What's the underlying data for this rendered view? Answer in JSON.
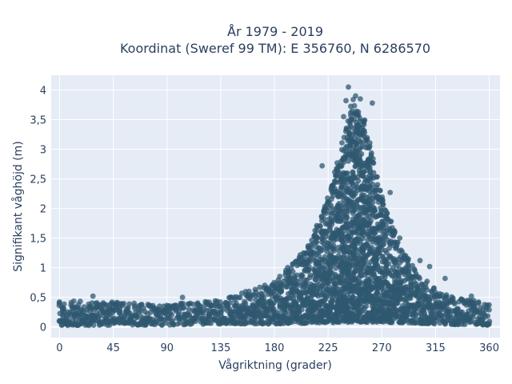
{
  "chart_data": {
    "type": "scatter",
    "title_line1": "År 1979 - 2019",
    "title_line2": "Koordinat (Sweref 99 TM): E 356760, N 6286570",
    "xlabel": "Vågriktning (grader)",
    "ylabel": "Signifikant våghöjd (m)",
    "xlim": [
      -7,
      369
    ],
    "ylim": [
      -0.18,
      4.25
    ],
    "x_ticks": [
      0,
      45,
      90,
      135,
      180,
      225,
      270,
      315,
      360
    ],
    "x_tick_labels": [
      "0",
      "45",
      "90",
      "135",
      "180",
      "225",
      "270",
      "315",
      "360"
    ],
    "y_ticks": [
      0,
      0.5,
      1,
      1.5,
      2,
      2.5,
      3,
      3.5,
      4
    ],
    "y_tick_labels": [
      "0",
      "0,5",
      "1",
      "1,5",
      "2",
      "2,5",
      "3",
      "3,5",
      "4"
    ],
    "grid": true,
    "background_color": "#e5ecf6",
    "marker_color": "#2f5870",
    "marker_opacity": 0.75,
    "point_cloud_envelope": [
      {
        "x": 0,
        "lower": 0.02,
        "upper": 0.45
      },
      {
        "x": 45,
        "lower": 0.03,
        "upper": 0.42
      },
      {
        "x": 90,
        "lower": 0.03,
        "upper": 0.38
      },
      {
        "x": 135,
        "lower": 0.05,
        "upper": 0.45
      },
      {
        "x": 180,
        "lower": 0.05,
        "upper": 0.8
      },
      {
        "x": 210,
        "lower": 0.06,
        "upper": 1.4
      },
      {
        "x": 225,
        "lower": 0.07,
        "upper": 2.2
      },
      {
        "x": 240,
        "lower": 0.08,
        "upper": 3.4
      },
      {
        "x": 245,
        "lower": 0.08,
        "upper": 3.9
      },
      {
        "x": 255,
        "lower": 0.08,
        "upper": 3.5
      },
      {
        "x": 270,
        "lower": 0.08,
        "upper": 2.2
      },
      {
        "x": 285,
        "lower": 0.07,
        "upper": 1.4
      },
      {
        "x": 300,
        "lower": 0.06,
        "upper": 0.9
      },
      {
        "x": 315,
        "lower": 0.05,
        "upper": 0.65
      },
      {
        "x": 330,
        "lower": 0.04,
        "upper": 0.5
      },
      {
        "x": 360,
        "lower": 0.03,
        "upper": 0.4
      }
    ],
    "notable_points": [
      {
        "x": 242,
        "y": 4.05
      },
      {
        "x": 240,
        "y": 3.82
      },
      {
        "x": 248,
        "y": 3.9
      },
      {
        "x": 252,
        "y": 3.85
      },
      {
        "x": 238,
        "y": 3.55
      },
      {
        "x": 262,
        "y": 3.78
      },
      {
        "x": 230,
        "y": 2.28
      },
      {
        "x": 220,
        "y": 2.72
      },
      {
        "x": 277,
        "y": 2.27
      },
      {
        "x": 285,
        "y": 1.5
      },
      {
        "x": 302,
        "y": 1.12
      },
      {
        "x": 310,
        "y": 1.02
      },
      {
        "x": 323,
        "y": 0.82
      },
      {
        "x": 345,
        "y": 0.52
      },
      {
        "x": 28,
        "y": 0.52
      },
      {
        "x": 103,
        "y": 0.5
      }
    ]
  }
}
